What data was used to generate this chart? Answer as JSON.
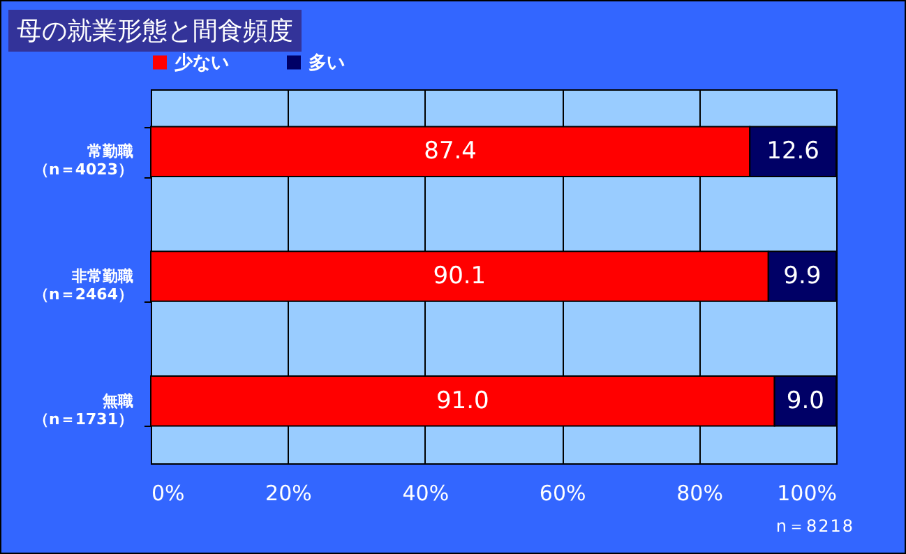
{
  "chart_data": {
    "type": "bar",
    "title": "母の就業形態と間食頻度",
    "orientation": "horizontal",
    "stacked": true,
    "categories": [
      "常勤職（n＝4023）",
      "非常勤職（n＝2464）",
      "無職（n＝1731）"
    ],
    "series": [
      {
        "name": "少ない",
        "color": "#ff0000",
        "values": [
          87.4,
          90.1,
          91.0
        ],
        "value_labels": [
          "87.4",
          "90.1",
          "91.0"
        ]
      },
      {
        "name": "多い",
        "color": "#000066",
        "values": [
          12.6,
          9.9,
          9.0
        ],
        "value_labels": [
          "12.6",
          "9.9",
          "9.0"
        ]
      }
    ],
    "xlim": [
      0,
      100
    ],
    "xticks": [
      {
        "value": 0,
        "label": "0%"
      },
      {
        "value": 20,
        "label": "20%"
      },
      {
        "value": 40,
        "label": "40%"
      },
      {
        "value": 60,
        "label": "60%"
      },
      {
        "value": 80,
        "label": "80%"
      },
      {
        "value": 100,
        "label": "100%"
      }
    ],
    "grid": "x",
    "legend": "top",
    "annotations": [
      "n＝8218"
    ]
  }
}
